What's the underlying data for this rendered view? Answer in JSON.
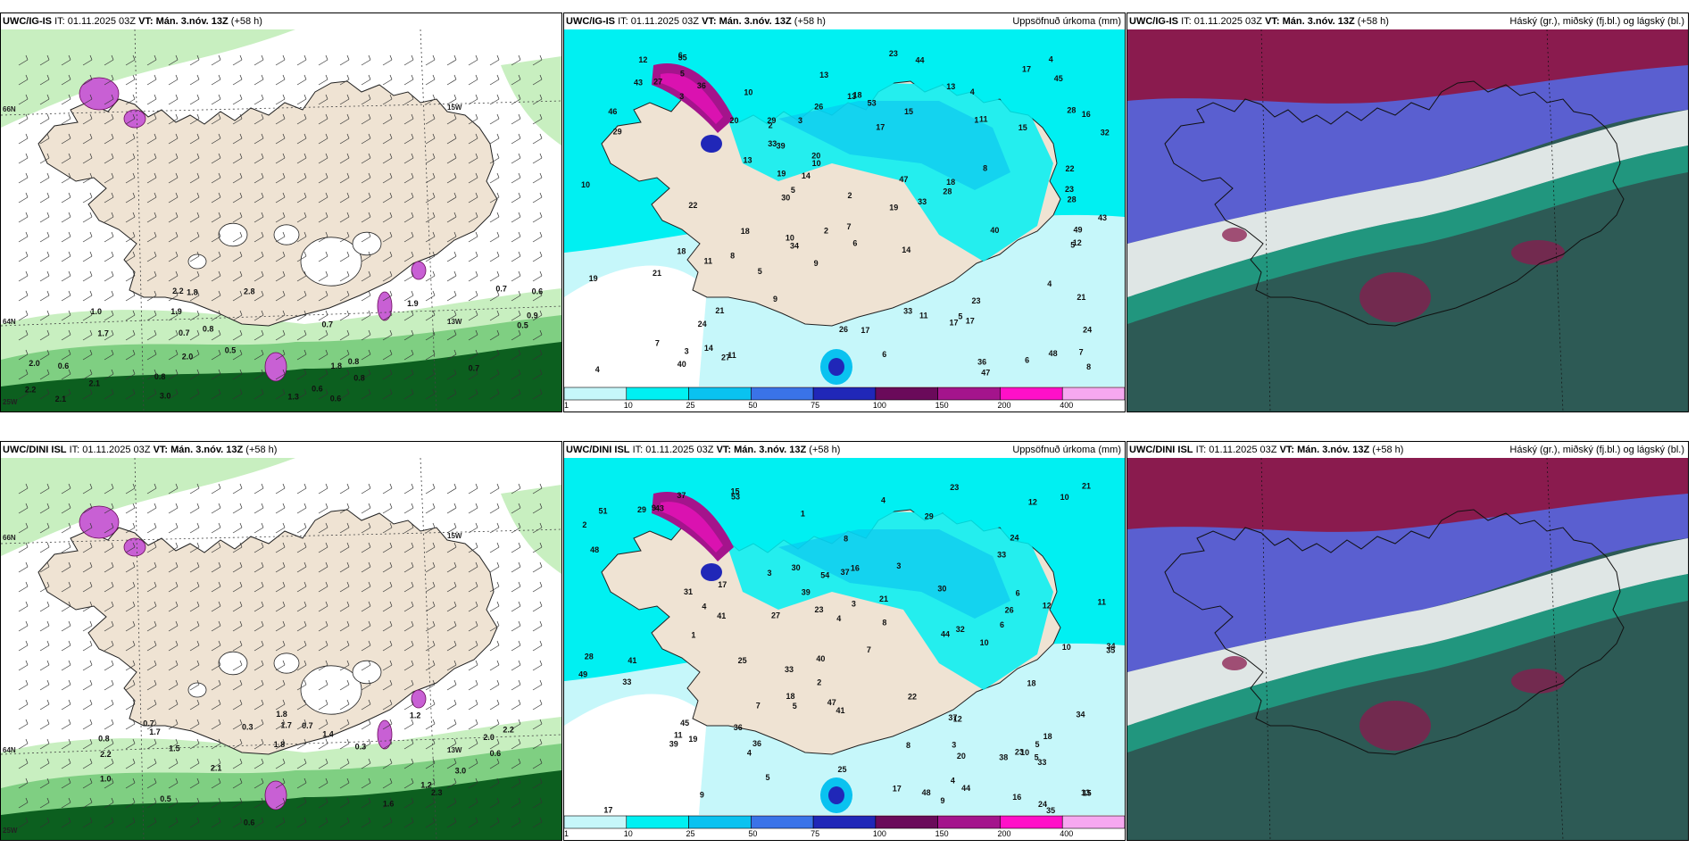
{
  "panels": {
    "ig_wind": {
      "model": "UWC/IG-IS",
      "it_prefix": "IT:",
      "it": "01.11.2025 03Z",
      "vt_prefix": "VT:",
      "vt": "Mán. 3.nóv. 13Z",
      "lead": "(+58 h)",
      "title": "",
      "labels": [
        "0.6",
        "0.6",
        "0.8",
        "0.7",
        "0.5",
        "0.5",
        "0.8",
        "0.9",
        "0.8",
        "0.7",
        "0.6",
        "0.7",
        "2.1",
        "1.8",
        "1.9",
        "2.8",
        "2.0",
        "1.9",
        "2.2",
        "2.2",
        "3.0",
        "2.1",
        "1.8",
        "2.0",
        "1.0",
        "0.6",
        "0.7",
        "0.8",
        "1.3",
        "1.7"
      ],
      "grid_labels": [
        "66N",
        "64N",
        "25W",
        "15W",
        "13W"
      ]
    },
    "ig_precip": {
      "model": "UWC/IG-IS",
      "it_prefix": "IT:",
      "it": "01.11.2025 03Z",
      "vt_prefix": "VT:",
      "vt": "Mán. 3.nóv. 13Z",
      "lead": "(+58 h)",
      "title": "Uppsöfnuð úrkoma (mm)",
      "labels": [
        "33",
        "29",
        "26",
        "28",
        "18",
        "43",
        "36",
        "11",
        "10",
        "21",
        "23",
        "34",
        "40",
        "18",
        "17",
        "36",
        "48",
        "53",
        "19",
        "19",
        "27",
        "47",
        "21",
        "22",
        "15",
        "49",
        "13",
        "16",
        "39",
        "46",
        "21",
        "22",
        "44",
        "28",
        "45",
        "47",
        "24",
        "11",
        "8",
        "55",
        "26",
        "43",
        "27",
        "40",
        "23",
        "14",
        "15",
        "30",
        "29",
        "32",
        "14",
        "11",
        "6",
        "33",
        "17",
        "12",
        "28",
        "20",
        "10",
        "3",
        "5",
        "20",
        "13",
        "17",
        "24",
        "19",
        "10",
        "5",
        "2",
        "13",
        "23",
        "18",
        "7",
        "4",
        "1",
        "33",
        "8",
        "6",
        "3",
        "2",
        "17",
        "9",
        "4",
        "4",
        "3",
        "12",
        "9",
        "10",
        "5",
        "5",
        "7",
        "13",
        "11",
        "7",
        "6",
        "8",
        "17",
        "18",
        "4",
        "6",
        "5",
        "2",
        "14"
      ],
      "colorbar_ticks": [
        "1",
        "10",
        "25",
        "50",
        "75",
        "100",
        "150",
        "200",
        "400"
      ],
      "colorbar_colors": [
        "#c6f7fa",
        "#00f0f2",
        "#0ac2f0",
        "#3a73e8",
        "#2027b8",
        "#6a0a5a",
        "#a4148c",
        "#ff10c8",
        "#f6a8f0"
      ]
    },
    "ig_cloud": {
      "model": "UWC/IG-IS",
      "it_prefix": "IT:",
      "it": "01.11.2025 03Z",
      "vt_prefix": "VT:",
      "vt": "Mán. 3.nóv. 13Z",
      "lead": "(+58 h)",
      "title": "Háský (gr.), miðský (fj.bl.) og lágský (bl.)"
    },
    "dini_wind": {
      "model": "UWC/DINI ISL",
      "it_prefix": "IT:",
      "it": "01.11.2025 03Z",
      "vt_prefix": "VT:",
      "vt": "Mán. 3.nóv. 13Z",
      "lead": "(+58 h)",
      "title": "",
      "labels": [
        "0.3",
        "0.3",
        "0.6",
        "0.6",
        "0.5",
        "0.7",
        "1.0",
        "1.2",
        "1.6",
        "1.7",
        "1.8",
        "2.2",
        "1.5",
        "1.2",
        "2.2",
        "3.0",
        "2.0",
        "2.1",
        "1.8",
        "1.7",
        "2.3",
        "1.4",
        "0.8",
        "0.7"
      ],
      "grid_labels": [
        "66N",
        "64N",
        "25W",
        "15W",
        "13W"
      ]
    },
    "dini_precip": {
      "model": "UWC/DINI ISL",
      "it_prefix": "IT:",
      "it": "01.11.2025 03Z",
      "vt_prefix": "VT:",
      "vt": "Mán. 3.nóv. 13Z",
      "lead": "(+58 h)",
      "title": "Uppsöfnuð úrkoma (mm)",
      "labels": [
        "33",
        "33",
        "29",
        "25",
        "37",
        "53",
        "36",
        "43",
        "33",
        "34",
        "30",
        "13",
        "48",
        "39",
        "41",
        "38",
        "32",
        "21",
        "12",
        "35",
        "37",
        "44",
        "17",
        "16",
        "39",
        "45",
        "41",
        "18",
        "49",
        "27",
        "20",
        "48",
        "54",
        "47",
        "17",
        "12",
        "34",
        "51",
        "21",
        "22",
        "23",
        "28",
        "44",
        "10",
        "30",
        "16",
        "35",
        "40",
        "23",
        "36",
        "41",
        "24",
        "9",
        "12",
        "15",
        "33",
        "24",
        "37",
        "26",
        "18",
        "5",
        "15",
        "19",
        "25",
        "29",
        "31",
        "18",
        "9",
        "11",
        "6",
        "5",
        "4",
        "4",
        "3",
        "2",
        "1",
        "8",
        "5",
        "3",
        "7",
        "9",
        "10",
        "11",
        "8",
        "10",
        "10",
        "7",
        "8",
        "4",
        "6",
        "5",
        "3",
        "4",
        "4",
        "2",
        "3",
        "1",
        "17",
        "23"
      ],
      "colorbar_ticks": [
        "1",
        "10",
        "25",
        "50",
        "75",
        "100",
        "150",
        "200",
        "400"
      ],
      "colorbar_colors": [
        "#c6f7fa",
        "#00f0f2",
        "#0ac2f0",
        "#3a73e8",
        "#2027b8",
        "#6a0a5a",
        "#a4148c",
        "#ff10c8",
        "#f6a8f0"
      ]
    },
    "dini_cloud": {
      "model": "UWC/DINI ISL",
      "it_prefix": "IT:",
      "it": "01.11.2025 03Z",
      "vt_prefix": "VT:",
      "vt": "Mán. 3.nóv. 13Z",
      "lead": "(+58 h)",
      "title": "Háský (gr.), miðský (fj.bl.) og lágský (bl.)"
    }
  },
  "colors": {
    "land": "#efe3d3",
    "snow_white": "#ffffff",
    "wind_light_green": "#c8efc0",
    "wind_green": "#7fcf82",
    "wind_dark_green": "#0c5f1f",
    "wind_magenta": "#c860d4",
    "precip_light": "#c6f7fa",
    "precip_cyan": "#00f0f2",
    "cloud_high": "#2d5a55",
    "cloud_mid": "#5a5fd0",
    "cloud_low": "#8a1b4e"
  }
}
